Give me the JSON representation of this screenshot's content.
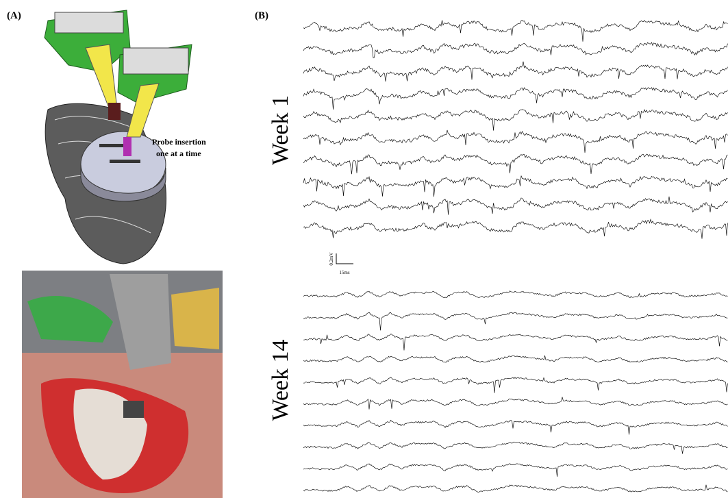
{
  "panels": {
    "a": {
      "label": "(A)",
      "annotation": {
        "line1": "Probe insertion",
        "line2": "one at a time"
      }
    },
    "b": {
      "label": "(B)",
      "groups": [
        {
          "label": "Week 1"
        },
        {
          "label": "Week 14"
        }
      ],
      "scale_bar": {
        "amplitude": "0.2mV",
        "time": "15ms"
      }
    }
  }
}
